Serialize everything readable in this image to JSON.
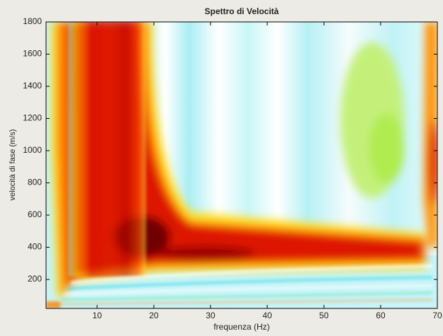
{
  "chart_data": {
    "type": "heatmap",
    "title": "Spettro di Velocità",
    "x_label": "frequenza (Hz)",
    "y_label": "velocità di fase (m/s)",
    "xlim": [
      1,
      70
    ],
    "ylim": [
      20,
      1800
    ],
    "xticks": [
      10,
      20,
      30,
      40,
      50,
      60,
      70
    ],
    "yticks": [
      200,
      400,
      600,
      800,
      1000,
      1200,
      1400,
      1600,
      1800
    ]
  }
}
